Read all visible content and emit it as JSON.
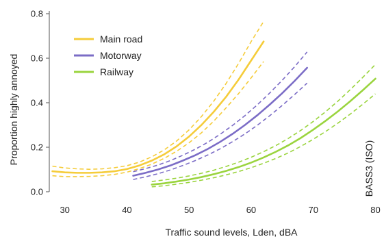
{
  "chart_data": {
    "type": "line",
    "xlabel": "Traffic sound levels, Lden, dBA",
    "ylabel": "Proportion highly annoyed",
    "xlim": [
      27.5,
      80.5
    ],
    "ylim": [
      0,
      0.8
    ],
    "xticks": [
      30,
      40,
      50,
      60,
      70,
      80
    ],
    "yticks": [
      0.0,
      0.2,
      0.4,
      0.6,
      0.8
    ],
    "ytick_labels": [
      "0.0",
      "0.2",
      "0.4",
      "0.6",
      "0.8"
    ],
    "grid": false,
    "legend_position": "top-left",
    "annotation": "BASS3 (ISO)",
    "series": [
      {
        "name": "Main road",
        "color": "#f5cc3a",
        "x": [
          28,
          30,
          32,
          34,
          36,
          38,
          40,
          42,
          44,
          46,
          48,
          50,
          52,
          54,
          56,
          58,
          60,
          62
        ],
        "y": [
          0.092,
          0.087,
          0.085,
          0.085,
          0.087,
          0.092,
          0.102,
          0.118,
          0.14,
          0.168,
          0.204,
          0.248,
          0.3,
          0.36,
          0.428,
          0.505,
          0.59,
          0.675
        ],
        "upper": [
          0.115,
          0.107,
          0.103,
          0.101,
          0.103,
          0.108,
          0.117,
          0.133,
          0.157,
          0.188,
          0.228,
          0.278,
          0.338,
          0.408,
          0.488,
          0.578,
          0.675,
          0.765
        ],
        "lower": [
          0.072,
          0.068,
          0.068,
          0.069,
          0.072,
          0.078,
          0.088,
          0.104,
          0.124,
          0.15,
          0.182,
          0.22,
          0.265,
          0.318,
          0.378,
          0.442,
          0.512,
          0.585
        ]
      },
      {
        "name": "Motorway",
        "color": "#7b6cc6",
        "x": [
          41,
          43,
          45,
          47,
          49,
          51,
          53,
          55,
          57,
          59,
          61,
          63,
          65,
          67,
          69
        ],
        "y": [
          0.072,
          0.085,
          0.1,
          0.118,
          0.14,
          0.164,
          0.192,
          0.224,
          0.26,
          0.3,
          0.344,
          0.392,
          0.443,
          0.498,
          0.557
        ],
        "upper": [
          0.09,
          0.104,
          0.12,
          0.14,
          0.164,
          0.191,
          0.222,
          0.258,
          0.298,
          0.342,
          0.391,
          0.444,
          0.501,
          0.562,
          0.628
        ],
        "lower": [
          0.055,
          0.067,
          0.081,
          0.098,
          0.118,
          0.14,
          0.165,
          0.193,
          0.225,
          0.26,
          0.299,
          0.342,
          0.388,
          0.437,
          0.488
        ]
      },
      {
        "name": "Railway",
        "color": "#9ad43e",
        "x": [
          44,
          46,
          48,
          50,
          52,
          54,
          56,
          58,
          60,
          62,
          64,
          66,
          68,
          70,
          72,
          74,
          76,
          78,
          80
        ],
        "y": [
          0.032,
          0.038,
          0.046,
          0.055,
          0.066,
          0.079,
          0.094,
          0.111,
          0.131,
          0.154,
          0.18,
          0.209,
          0.242,
          0.279,
          0.319,
          0.362,
          0.408,
          0.457,
          0.508
        ],
        "upper": [
          0.046,
          0.053,
          0.061,
          0.071,
          0.083,
          0.097,
          0.114,
          0.133,
          0.155,
          0.18,
          0.208,
          0.24,
          0.276,
          0.316,
          0.36,
          0.408,
          0.46,
          0.515,
          0.572
        ],
        "lower": [
          0.022,
          0.027,
          0.034,
          0.042,
          0.052,
          0.063,
          0.076,
          0.091,
          0.108,
          0.128,
          0.15,
          0.175,
          0.204,
          0.236,
          0.271,
          0.309,
          0.35,
          0.394,
          0.44
        ]
      }
    ]
  }
}
